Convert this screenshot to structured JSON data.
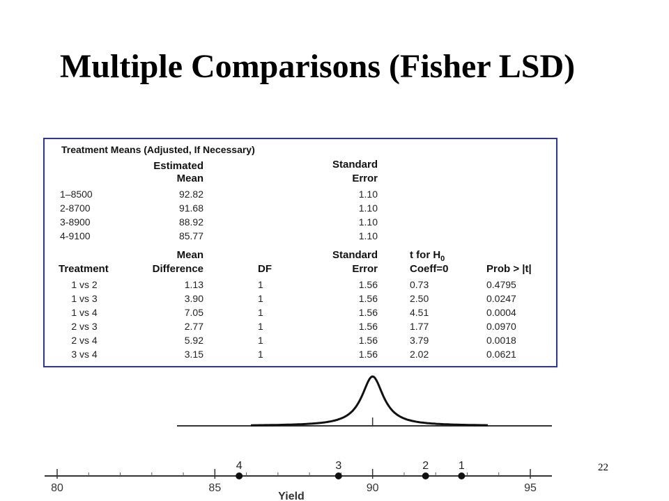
{
  "slide": {
    "title": "Multiple Comparisons (Fisher LSD)",
    "page_number": "22"
  },
  "means_table": {
    "section_title": "Treatment Means (Adjusted, If Necessary)",
    "col_estimated": [
      "Estimated",
      "Mean"
    ],
    "col_stderr": [
      "Standard",
      "Error"
    ],
    "rows": [
      {
        "treatment": "1–8500",
        "mean": "92.82",
        "se": "1.10"
      },
      {
        "treatment": "2-8700",
        "mean": "91.68",
        "se": "1.10"
      },
      {
        "treatment": "3-8900",
        "mean": "88.92",
        "se": "1.10"
      },
      {
        "treatment": "4-9100",
        "mean": "85.77",
        "se": "1.10"
      }
    ]
  },
  "comparison_table": {
    "headers": {
      "treatment": "Treatment",
      "mean_diff": [
        "Mean",
        "Difference"
      ],
      "df": "DF",
      "stderr": [
        "Standard",
        "Error"
      ],
      "t_line1": "t for H",
      "t_sub": "0",
      "t_line2": "Coeff=0",
      "prob_prefix": "Prob > |",
      "prob_t": "t",
      "prob_suffix": "|"
    },
    "rows": [
      {
        "treatment": "1 vs 2",
        "diff": "1.13",
        "df": "1",
        "se": "1.56",
        "t": "0.73",
        "p": "0.4795"
      },
      {
        "treatment": "1 vs 3",
        "diff": "3.90",
        "df": "1",
        "se": "1.56",
        "t": "2.50",
        "p": "0.0247"
      },
      {
        "treatment": "1 vs 4",
        "diff": "7.05",
        "df": "1",
        "se": "1.56",
        "t": "4.51",
        "p": "0.0004"
      },
      {
        "treatment": "2 vs 3",
        "diff": "2.77",
        "df": "1",
        "se": "1.56",
        "t": "1.77",
        "p": "0.0970"
      },
      {
        "treatment": "2 vs 4",
        "diff": "5.92",
        "df": "1",
        "se": "1.56",
        "t": "3.79",
        "p": "0.0018"
      },
      {
        "treatment": "3 vs 4",
        "diff": "3.15",
        "df": "1",
        "se": "1.56",
        "t": "2.02",
        "p": "0.0621"
      }
    ]
  },
  "yield_plot": {
    "axis_label": "Yield",
    "ticks": [
      80,
      85,
      90,
      95
    ],
    "x_range": [
      80,
      95
    ],
    "curve_center": 90,
    "points": [
      {
        "label": "4",
        "value": 85.77
      },
      {
        "label": "3",
        "value": 88.92
      },
      {
        "label": "2",
        "value": 91.68
      },
      {
        "label": "1",
        "value": 92.82
      }
    ]
  }
}
